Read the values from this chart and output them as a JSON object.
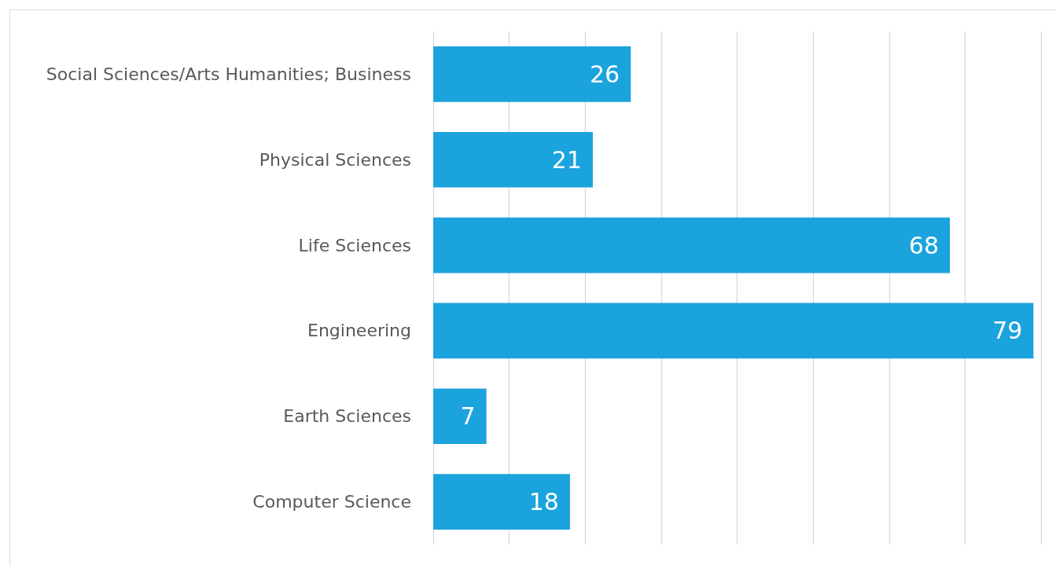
{
  "chart_data": {
    "type": "bar",
    "orientation": "horizontal",
    "categories": [
      "Social Sciences/Arts Humanities; Business",
      "Physical Sciences",
      "Life Sciences",
      "Engineering",
      "Earth Sciences",
      "Computer Science"
    ],
    "values": [
      26,
      21,
      68,
      79,
      7,
      18
    ],
    "color": "#1ba3dd",
    "xlim": [
      0,
      80
    ],
    "xticks": [
      {
        "value": 0,
        "label": null
      },
      {
        "value": 10,
        "label": null
      },
      {
        "value": 20,
        "label": null
      },
      {
        "value": 30,
        "label": null
      },
      {
        "value": 40,
        "label": null
      },
      {
        "value": 50,
        "label": null
      },
      {
        "value": 60,
        "label": null
      },
      {
        "value": 70,
        "label": null
      },
      {
        "value": 80,
        "label": null
      }
    ],
    "grid": "x",
    "tick_labels": "y",
    "data_labels": true
  }
}
